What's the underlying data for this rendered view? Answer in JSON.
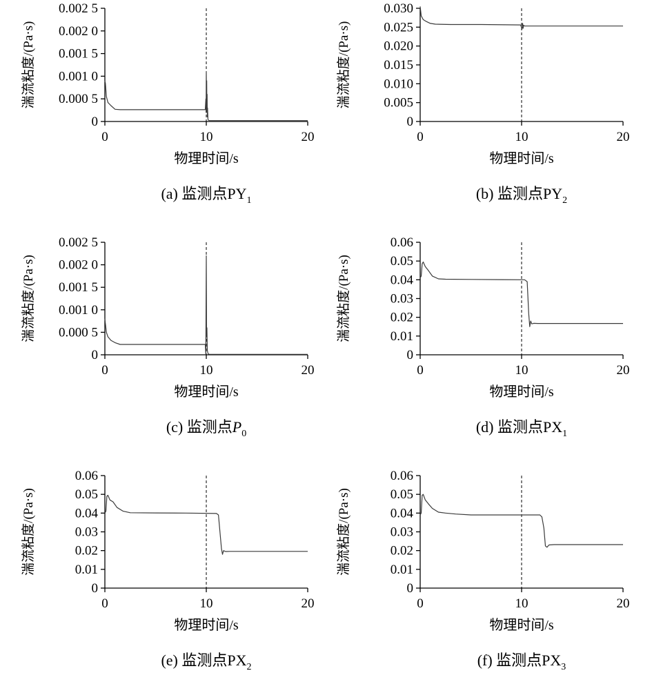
{
  "chart_data": [
    {
      "type": "line",
      "xlabel": "物理时间/s",
      "ylabel": "湍流粘度/(Pa·s)",
      "caption": {
        "prefix": "(a) 监测点",
        "main": "PY",
        "sub": "1",
        "italic": false
      },
      "xlim": [
        0,
        20
      ],
      "ylim": [
        0,
        0.0025
      ],
      "xticks": [
        0,
        10,
        20
      ],
      "yticks": [
        0,
        0.0005,
        0.001,
        0.0015,
        0.002,
        0.0025
      ],
      "ytick_labels": [
        "0",
        "0.000 5",
        "0.001 0",
        "0.001 5",
        "0.002 0",
        "0.002 5"
      ],
      "vline": 10,
      "series": [
        {
          "x": [
            0,
            0.05,
            0.15,
            0.3,
            0.6,
            1.0,
            1.5,
            3,
            6,
            9.5,
            9.9,
            9.96,
            9.98,
            10.0,
            10.02,
            10.04,
            10.06,
            10.08,
            10.1,
            10.12,
            10.16,
            10.2,
            10.3,
            10.5,
            11,
            14,
            17,
            20
          ],
          "y": [
            0.0009,
            0.00085,
            0.00055,
            0.00042,
            0.00035,
            0.00027,
            0.00026,
            0.00026,
            0.00026,
            0.00026,
            0.00026,
            0.0005,
            0.0002,
            0.0011,
            0.0004,
            0.0009,
            0.0002,
            0.0006,
            0.0001,
            0.0003,
            5e-05,
            3e-05,
            2e-05,
            2e-05,
            2e-05,
            2e-05,
            2e-05,
            2e-05
          ]
        }
      ]
    },
    {
      "type": "line",
      "xlabel": "物理时间/s",
      "ylabel": "湍流粘度/(Pa·s)",
      "caption": {
        "prefix": "(b) 监测点",
        "main": "PY",
        "sub": "2",
        "italic": false
      },
      "xlim": [
        0,
        20
      ],
      "ylim": [
        0,
        0.03
      ],
      "xticks": [
        0,
        10,
        20
      ],
      "yticks": [
        0,
        0.005,
        0.01,
        0.015,
        0.02,
        0.025,
        0.03
      ],
      "ytick_labels": [
        "0",
        "0.005",
        "0.010",
        "0.015",
        "0.020",
        "0.025",
        "0.030"
      ],
      "vline": 10,
      "series": [
        {
          "x": [
            0,
            0.1,
            0.3,
            0.6,
            1.0,
            1.5,
            3,
            6,
            9.9,
            10.05,
            10.1,
            10.15,
            10.2,
            10.3,
            12,
            15,
            20
          ],
          "y": [
            0.0305,
            0.028,
            0.027,
            0.0265,
            0.026,
            0.0258,
            0.0257,
            0.0257,
            0.0256,
            0.0245,
            0.026,
            0.0247,
            0.0255,
            0.0253,
            0.0253,
            0.0253,
            0.0253
          ]
        }
      ]
    },
    {
      "type": "line",
      "xlabel": "物理时间/s",
      "ylabel": "湍流粘度/(Pa·s)",
      "caption": {
        "prefix": "(c) 监测点",
        "main": "P",
        "sub": "0",
        "italic": true
      },
      "xlim": [
        0,
        20
      ],
      "ylim": [
        0,
        0.0025
      ],
      "xticks": [
        0,
        10,
        20
      ],
      "yticks": [
        0,
        0.0005,
        0.001,
        0.0015,
        0.002,
        0.0025
      ],
      "ytick_labels": [
        "0",
        "0.000 5",
        "0.001 0",
        "0.001 5",
        "0.002 0",
        "0.002 5"
      ],
      "vline": 10,
      "series": [
        {
          "x": [
            0,
            0.05,
            0.15,
            0.3,
            0.6,
            1.0,
            1.5,
            3,
            6,
            9.8,
            9.9,
            9.95,
            10.0,
            10.03,
            10.06,
            10.1,
            10.14,
            10.2,
            10.3,
            10.5,
            12,
            15,
            20
          ],
          "y": [
            0.0008,
            0.0007,
            0.0005,
            0.0004,
            0.00032,
            0.00027,
            0.00023,
            0.00023,
            0.00023,
            0.00023,
            0.00023,
            2e-05,
            0.0022,
            0.0004,
            0.0006,
            0.0001,
            5e-05,
            2e-05,
            1e-05,
            1e-05,
            1e-05,
            1e-05,
            1e-05
          ]
        }
      ]
    },
    {
      "type": "line",
      "xlabel": "物理时间/s",
      "ylabel": "湍流粘度/(Pa·s)",
      "caption": {
        "prefix": "(d) 监测点",
        "main": "PX",
        "sub": "1",
        "italic": false
      },
      "xlim": [
        0,
        20
      ],
      "ylim": [
        0,
        0.06
      ],
      "xticks": [
        0,
        10,
        20
      ],
      "yticks": [
        0,
        0.01,
        0.02,
        0.03,
        0.04,
        0.05,
        0.06
      ],
      "ytick_labels": [
        "0",
        "0.01",
        "0.02",
        "0.03",
        "0.04",
        "0.05",
        "0.06"
      ],
      "vline": 10,
      "series": [
        {
          "x": [
            0,
            0.1,
            0.2,
            0.3,
            0.5,
            0.8,
            1.2,
            1.8,
            2.5,
            5,
            8,
            10.3,
            10.55,
            10.7,
            10.8,
            10.9,
            11.0,
            11.2,
            11.6,
            14,
            17,
            20
          ],
          "y": [
            0.041,
            0.042,
            0.0485,
            0.0495,
            0.047,
            0.045,
            0.042,
            0.0405,
            0.0403,
            0.0402,
            0.0401,
            0.04,
            0.039,
            0.022,
            0.015,
            0.018,
            0.0165,
            0.0168,
            0.0167,
            0.0167,
            0.0167,
            0.0167
          ]
        }
      ]
    },
    {
      "type": "line",
      "xlabel": "物理时间/s",
      "ylabel": "湍流粘度/(Pa·s)",
      "caption": {
        "prefix": "(e) 监测点",
        "main": "PX",
        "sub": "2",
        "italic": false
      },
      "xlim": [
        0,
        20
      ],
      "ylim": [
        0,
        0.06
      ],
      "xticks": [
        0,
        10,
        20
      ],
      "yticks": [
        0,
        0.01,
        0.02,
        0.03,
        0.04,
        0.05,
        0.06
      ],
      "ytick_labels": [
        "0",
        "0.01",
        "0.02",
        "0.03",
        "0.04",
        "0.05",
        "0.06"
      ],
      "vline": 10,
      "series": [
        {
          "x": [
            0,
            0.1,
            0.2,
            0.3,
            0.5,
            0.8,
            1.2,
            1.8,
            2.5,
            5,
            8,
            11.0,
            11.2,
            11.35,
            11.5,
            11.6,
            11.7,
            11.9,
            12.3,
            15,
            18,
            20
          ],
          "y": [
            0.04,
            0.041,
            0.049,
            0.0495,
            0.047,
            0.046,
            0.043,
            0.041,
            0.0402,
            0.0401,
            0.04,
            0.0398,
            0.039,
            0.03,
            0.021,
            0.018,
            0.02,
            0.0195,
            0.0196,
            0.0196,
            0.0196,
            0.0196
          ]
        }
      ]
    },
    {
      "type": "line",
      "xlabel": "物理时间/s",
      "ylabel": "湍流粘度/(Pa·s)",
      "caption": {
        "prefix": "(f) 监测点",
        "main": "PX",
        "sub": "3",
        "italic": false
      },
      "xlim": [
        0,
        20
      ],
      "ylim": [
        0,
        0.06
      ],
      "xticks": [
        0,
        10,
        20
      ],
      "yticks": [
        0,
        0.01,
        0.02,
        0.03,
        0.04,
        0.05,
        0.06
      ],
      "ytick_labels": [
        "0",
        "0.01",
        "0.02",
        "0.03",
        "0.04",
        "0.05",
        "0.06"
      ],
      "vline": 10,
      "series": [
        {
          "x": [
            0,
            0.1,
            0.2,
            0.3,
            0.5,
            0.8,
            1.2,
            1.8,
            2.5,
            3.5,
            5,
            8,
            11.8,
            12.0,
            12.2,
            12.35,
            12.5,
            12.7,
            13.2,
            16,
            20
          ],
          "y": [
            0.039,
            0.04,
            0.0495,
            0.05,
            0.047,
            0.045,
            0.0425,
            0.0405,
            0.04,
            0.0395,
            0.039,
            0.039,
            0.039,
            0.038,
            0.032,
            0.0225,
            0.0218,
            0.023,
            0.0232,
            0.0232,
            0.0232
          ]
        }
      ]
    }
  ]
}
